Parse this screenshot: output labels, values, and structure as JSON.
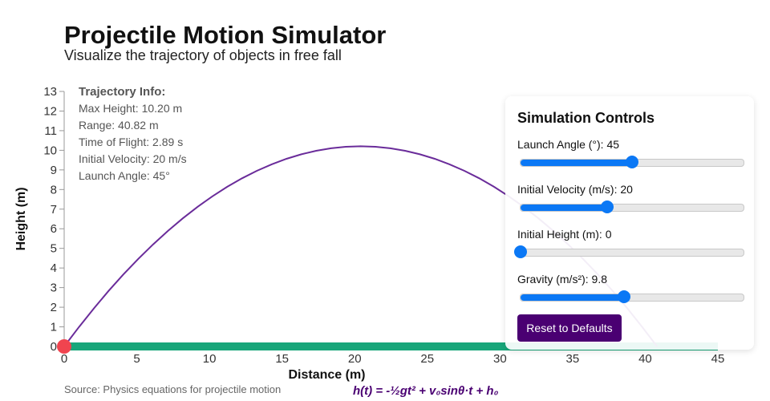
{
  "header": {
    "title": "Projectile Motion Simulator",
    "subtitle": "Visualize the trajectory of objects in free fall"
  },
  "source": "Source: Physics equations for projectile motion",
  "formula": "h(t) = -½gt² + v₀sinθ·t + h₀",
  "info": {
    "heading": "Trajectory Info:",
    "lines": [
      "Max Height: 10.20 m",
      "Range: 40.82 m",
      "Time of Flight: 2.89 s",
      "Initial Velocity: 20 m/s",
      "Launch Angle: 45°"
    ]
  },
  "controls": {
    "title": "Simulation Controls",
    "items": [
      {
        "label": "Launch Angle (°): 45",
        "value": 45,
        "min": 0,
        "max": 90
      },
      {
        "label": "Initial Velocity (m/s): 20",
        "value": 20,
        "min": 1,
        "max": 50
      },
      {
        "label": "Initial Height (m): 0",
        "value": 0,
        "min": 0,
        "max": 50
      },
      {
        "label": "Gravity (m/s²): 9.8",
        "value": 9.8,
        "min": 1,
        "max": 20
      }
    ],
    "reset_label": "Reset to Defaults"
  },
  "colors": {
    "trajectory": "#6a2c9a",
    "ground": "#18a67a",
    "ball": "#f0444f",
    "accent": "#0b78f5",
    "button": "#4a0072"
  },
  "chart_data": {
    "type": "line",
    "xlabel": "Distance (m)",
    "ylabel": "Height (m)",
    "xlim": [
      0,
      45
    ],
    "ylim": [
      0,
      13
    ],
    "xticks": [
      0,
      5,
      10,
      15,
      20,
      25,
      30,
      35,
      40,
      45
    ],
    "yticks": [
      0,
      1,
      2,
      3,
      4,
      5,
      6,
      7,
      8,
      9,
      10,
      11,
      12,
      13
    ],
    "params": {
      "angle_deg": 45,
      "velocity": 20,
      "height": 0,
      "gravity": 9.8
    },
    "max_height": 10.2,
    "range": 40.82,
    "ball": {
      "x": 0,
      "y": 0
    }
  }
}
